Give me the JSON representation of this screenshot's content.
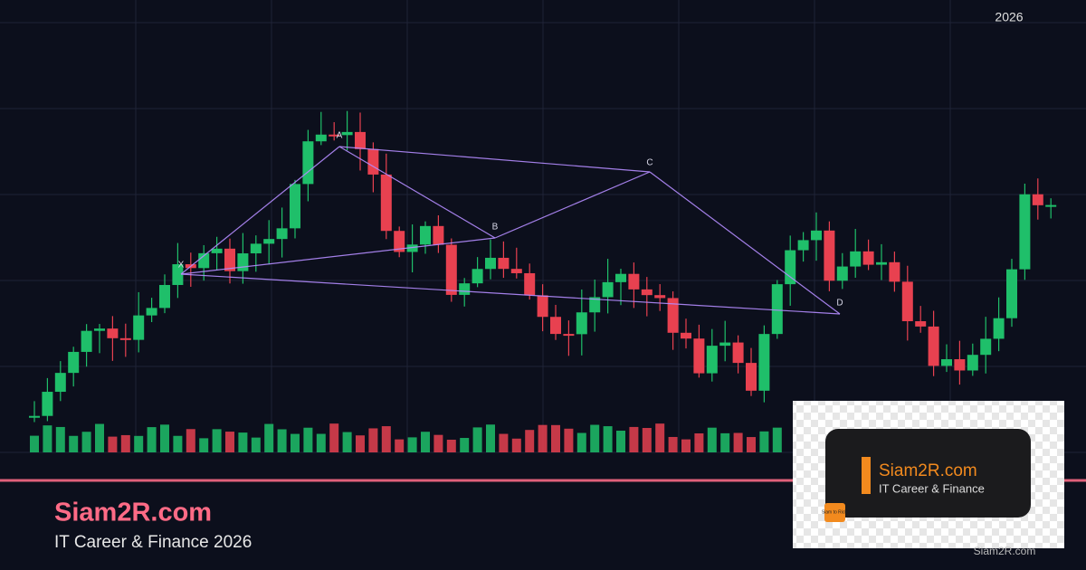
{
  "header": {
    "year": "2026"
  },
  "pattern": {
    "points": [
      {
        "label": "X"
      },
      {
        "label": "A"
      },
      {
        "label": "B"
      },
      {
        "label": "C"
      },
      {
        "label": "D"
      }
    ]
  },
  "brand": {
    "title": "Siam2R.com",
    "subtitle": "IT Career & Finance 2026"
  },
  "logo": {
    "title": "Siam2R.com",
    "subtitle": "IT Career & Finance",
    "badge": "Siam to Rich",
    "watermark": "Siam2R.com"
  }
}
